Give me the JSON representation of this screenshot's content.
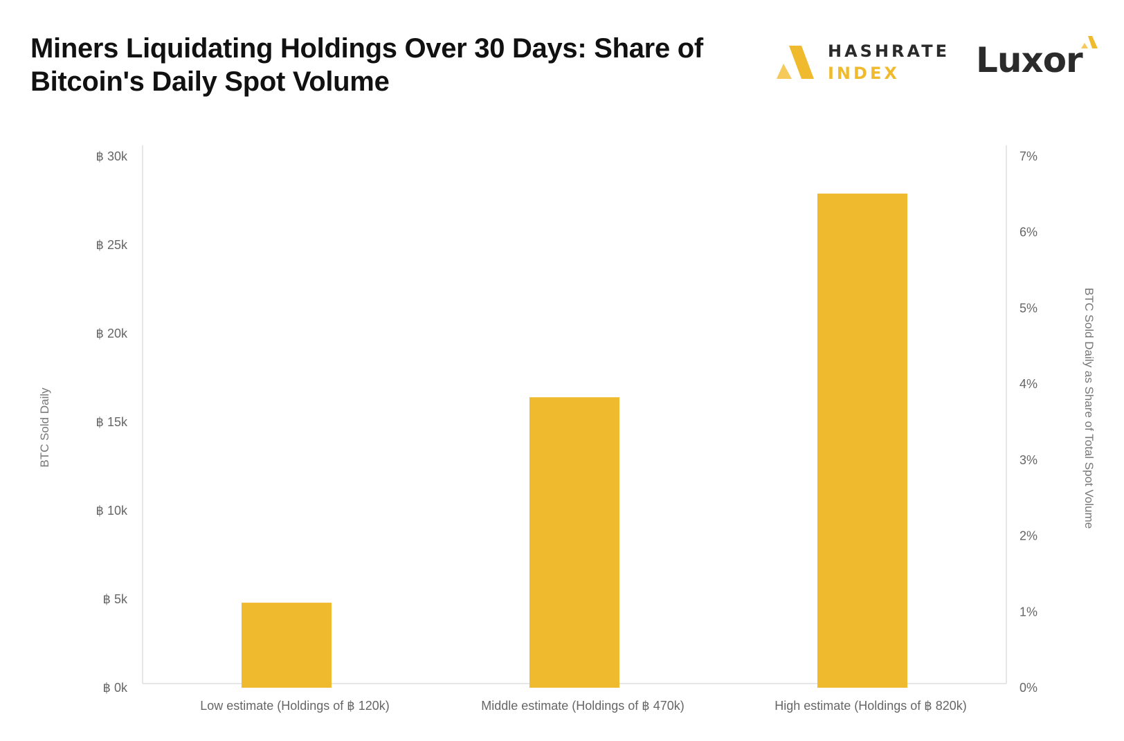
{
  "title": "Miners Liquidating Holdings Over 30 Days: Share of Bitcoin's Daily Spot Volume",
  "logos": {
    "hashrate_line1": "HASHRATE",
    "hashrate_line2": "INDEX",
    "luxor": "Luxor"
  },
  "colors": {
    "bar": "#f0ba2f",
    "axis": "#dddddd",
    "brand_dark": "#2a2a2a",
    "brand_accent": "#f0ba2f"
  },
  "chart_data": {
    "type": "bar",
    "categories": [
      "Low estimate (Holdings of ฿ 120k)",
      "Middle estimate (Holdings of ฿ 470k)",
      "High estimate (Holdings of ฿ 820k)"
    ],
    "values": [
      4800,
      16400,
      27900
    ],
    "ylabel": "BTC Sold Daily",
    "y2label": "BTC Sold Daily as Share of Total Spot Volume",
    "ylim": [
      0,
      30000
    ],
    "y2lim": [
      0,
      7
    ],
    "yticks": [
      0,
      5000,
      10000,
      15000,
      20000,
      25000,
      30000
    ],
    "ytick_labels": [
      "฿ 0k",
      "฿ 5k",
      "฿ 10k",
      "฿ 15k",
      "฿ 20k",
      "฿ 25k",
      "฿ 30k"
    ],
    "y2ticks": [
      0,
      1,
      2,
      3,
      4,
      5,
      6,
      7
    ],
    "y2tick_labels": [
      "0%",
      "1%",
      "2%",
      "3%",
      "4%",
      "5%",
      "6%",
      "7%"
    ],
    "grid": false,
    "legend": "none"
  }
}
